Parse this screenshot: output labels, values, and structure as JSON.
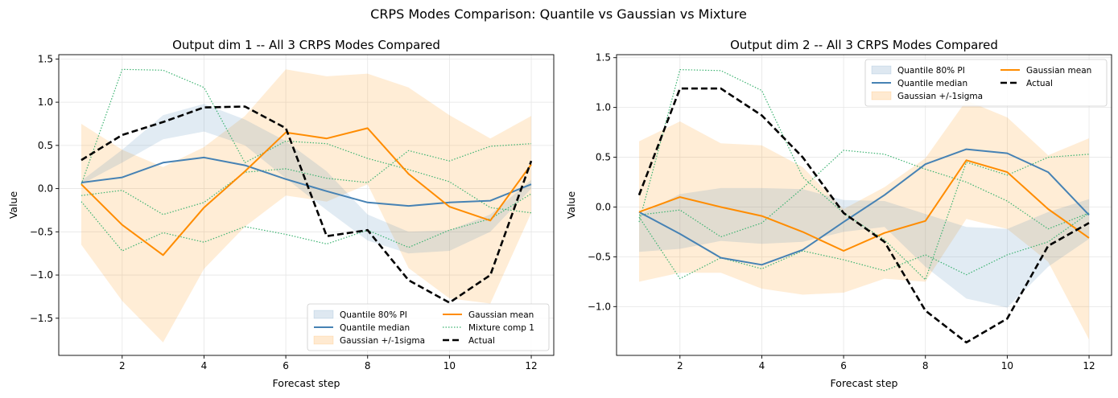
{
  "suptitle": "CRPS Modes Comparison: Quantile vs Gaussian vs Mixture",
  "colors": {
    "quantile": "#4682b4",
    "gaussian": "#ff8c00",
    "mixture": "#3cb371",
    "actual": "#000000",
    "grid": "#e6e6e6"
  },
  "chart_data": [
    {
      "type": "line",
      "title": "Output dim 1 -- All 3 CRPS Modes Compared",
      "xlabel": "Forecast step",
      "ylabel": "Value",
      "xlim": [
        0.45,
        12.55
      ],
      "ylim": [
        -1.93,
        1.55
      ],
      "xticks": [
        2,
        4,
        6,
        8,
        10,
        12
      ],
      "yticks": [
        -1.5,
        -1.0,
        -0.5,
        0.0,
        0.5,
        1.0,
        1.5
      ],
      "grid": true,
      "legend_position": "lower-right",
      "legend_columns": 2,
      "x": [
        1,
        2,
        3,
        4,
        5,
        6,
        7,
        8,
        9,
        10,
        11,
        12
      ],
      "legend": [
        {
          "label": "Quantile 80% PI",
          "kind": "patch",
          "series": "quantile_band"
        },
        {
          "label": "Quantile median",
          "kind": "line",
          "series": "quantile_median"
        },
        {
          "label": "Gaussian +/-1sigma",
          "kind": "patch",
          "series": "gaussian_band"
        },
        {
          "label": "Gaussian mean",
          "kind": "line",
          "series": "gaussian_mean"
        },
        {
          "label": "Mixture comp 1",
          "kind": "line",
          "series": "mixture_1"
        },
        {
          "label": "Actual",
          "kind": "line",
          "series": "actual"
        }
      ],
      "bands": {
        "quantile_band": {
          "lower": [
            0.05,
            0.3,
            0.57,
            0.66,
            0.5,
            0.12,
            -0.25,
            -0.6,
            -0.75,
            -0.72,
            -0.5,
            0.0
          ],
          "upper": [
            0.09,
            0.45,
            0.85,
            0.98,
            0.8,
            0.55,
            0.2,
            -0.3,
            -0.5,
            -0.48,
            -0.3,
            0.1
          ]
        },
        "gaussian_band": {
          "lower": [
            -0.65,
            -1.3,
            -1.78,
            -0.93,
            -0.44,
            -0.08,
            -0.15,
            0.05,
            -0.92,
            -1.27,
            -1.33,
            -0.28
          ],
          "upper": [
            0.75,
            0.45,
            0.25,
            0.48,
            0.84,
            1.38,
            1.3,
            1.33,
            1.17,
            0.85,
            0.58,
            0.84
          ]
        }
      },
      "series": [
        {
          "id": "mixture_1",
          "name": "Mixture comp 1",
          "values": [
            0.05,
            1.38,
            1.37,
            1.17,
            0.3,
            0.55,
            0.52,
            0.35,
            0.22,
            0.08,
            -0.22,
            -0.28
          ]
        },
        {
          "id": "mixture_2",
          "values": [
            -0.08,
            -0.02,
            -0.3,
            -0.16,
            0.19,
            0.23,
            0.12,
            0.07,
            0.44,
            0.32,
            0.49,
            0.52
          ]
        },
        {
          "id": "mixture_3",
          "values": [
            -0.15,
            -0.72,
            -0.51,
            -0.62,
            -0.44,
            -0.53,
            -0.64,
            -0.48,
            -0.68,
            -0.48,
            -0.35,
            -0.06
          ]
        },
        {
          "id": "quantile_median",
          "name": "Quantile median",
          "values": [
            0.07,
            0.13,
            0.3,
            0.36,
            0.27,
            0.11,
            -0.03,
            -0.16,
            -0.2,
            -0.16,
            -0.14,
            0.05
          ]
        },
        {
          "id": "gaussian_mean",
          "name": "Gaussian mean",
          "values": [
            0.05,
            -0.42,
            -0.77,
            -0.22,
            0.2,
            0.65,
            0.58,
            0.7,
            0.17,
            -0.21,
            -0.37,
            0.28
          ]
        },
        {
          "id": "actual",
          "name": "Actual",
          "values": [
            0.33,
            0.62,
            0.77,
            0.94,
            0.95,
            0.7,
            -0.55,
            -0.48,
            -1.06,
            -1.32,
            -1.0,
            0.32
          ]
        }
      ]
    },
    {
      "type": "line",
      "title": "Output dim 2 -- All 3 CRPS Modes Compared",
      "xlabel": "Forecast step",
      "ylabel": "Value",
      "xlim": [
        0.45,
        12.55
      ],
      "ylim": [
        -1.49,
        1.53
      ],
      "xticks": [
        2,
        4,
        6,
        8,
        10,
        12
      ],
      "yticks": [
        -1.0,
        -0.5,
        0.0,
        0.5,
        1.0,
        1.5
      ],
      "grid": true,
      "legend_position": "upper-right",
      "legend_columns": 2,
      "x": [
        1,
        2,
        3,
        4,
        5,
        6,
        7,
        8,
        9,
        10,
        11,
        12
      ],
      "legend": [
        {
          "label": "Quantile 80% PI",
          "kind": "patch",
          "series": "quantile_band"
        },
        {
          "label": "Quantile median",
          "kind": "line",
          "series": "quantile_median"
        },
        {
          "label": "Gaussian +/-1sigma",
          "kind": "patch",
          "series": "gaussian_band"
        },
        {
          "label": "Gaussian mean",
          "kind": "line",
          "series": "gaussian_mean"
        },
        {
          "label": "Actual",
          "kind": "line",
          "series": "actual"
        }
      ],
      "bands": {
        "quantile_band": {
          "lower": [
            -0.45,
            -0.42,
            -0.34,
            -0.37,
            -0.35,
            -0.25,
            -0.2,
            -0.6,
            -0.92,
            -1.01,
            -0.6,
            -0.32
          ],
          "upper": [
            -0.08,
            0.13,
            0.19,
            0.19,
            0.18,
            0.07,
            0.06,
            -0.07,
            -0.2,
            -0.22,
            -0.05,
            0.08
          ]
        },
        "gaussian_band": {
          "lower": [
            -0.75,
            -0.66,
            -0.66,
            -0.82,
            -0.88,
            -0.86,
            -0.72,
            -0.75,
            -0.12,
            -0.22,
            -0.55,
            -1.33
          ]
        },
        "gaussian_band_upper": [
          0.66,
          0.86,
          0.64,
          0.62,
          0.4,
          -0.02,
          0.2,
          0.49,
          1.07,
          0.9,
          0.52,
          0.69
        ]
      },
      "series": [
        {
          "id": "mixture_1",
          "values": [
            -0.15,
            1.38,
            1.37,
            1.17,
            0.3,
            -0.06,
            -0.33,
            -0.73,
            0.45,
            0.32,
            0.5,
            0.53
          ]
        },
        {
          "id": "mixture_2",
          "values": [
            -0.08,
            -0.03,
            -0.3,
            -0.16,
            0.19,
            0.57,
            0.53,
            0.38,
            0.25,
            0.06,
            -0.22,
            -0.06
          ]
        },
        {
          "id": "mixture_3",
          "values": [
            -0.1,
            -0.72,
            -0.51,
            -0.62,
            -0.44,
            -0.53,
            -0.64,
            -0.48,
            -0.68,
            -0.48,
            -0.35,
            -0.06
          ]
        },
        {
          "id": "quantile_median",
          "name": "Quantile median",
          "values": [
            -0.05,
            -0.27,
            -0.51,
            -0.58,
            -0.43,
            -0.15,
            0.12,
            0.43,
            0.58,
            0.54,
            0.35,
            -0.08
          ]
        },
        {
          "id": "gaussian_mean",
          "name": "Gaussian mean",
          "values": [
            -0.05,
            0.1,
            0.0,
            -0.09,
            -0.25,
            -0.44,
            -0.26,
            -0.14,
            0.47,
            0.35,
            -0.02,
            -0.31
          ]
        },
        {
          "id": "actual",
          "name": "Actual",
          "values": [
            0.12,
            1.19,
            1.19,
            0.92,
            0.5,
            -0.06,
            -0.35,
            -1.04,
            -1.36,
            -1.12,
            -0.39,
            -0.16
          ]
        }
      ]
    }
  ]
}
